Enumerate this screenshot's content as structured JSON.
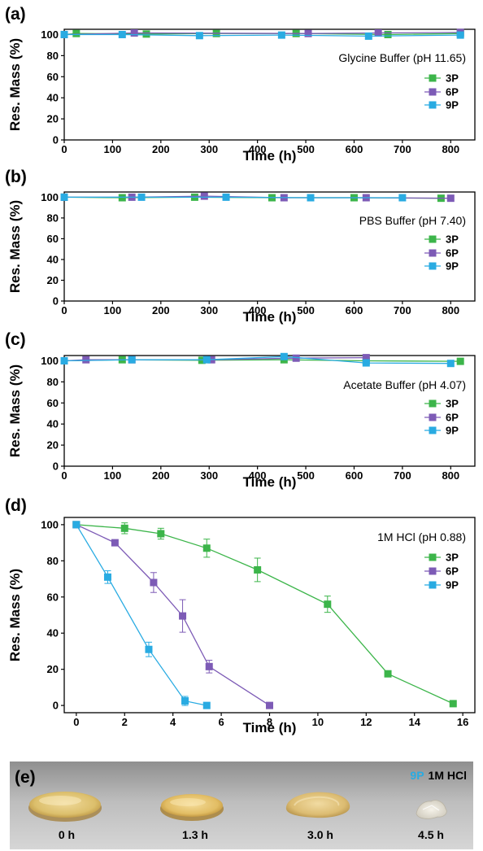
{
  "colors": {
    "3P": "#3cb54a",
    "6P": "#7d5bb6",
    "9P": "#29abe2"
  },
  "chart_data": [
    {
      "type": "line",
      "panel": "(a)",
      "condition": "Glycine Buffer (pH 11.65)",
      "xlabel": "Time (h)",
      "ylabel": "Res. Mass (%)",
      "xlim": [
        0,
        850
      ],
      "ylim": [
        0,
        105
      ],
      "xticks": [
        0,
        100,
        200,
        300,
        400,
        500,
        600,
        700,
        800
      ],
      "yticks": [
        0,
        20,
        40,
        60,
        80,
        100
      ],
      "legend_position": "right",
      "series": [
        {
          "name": "3P",
          "x": [
            0,
            25,
            170,
            315,
            480,
            670,
            820
          ],
          "y": [
            100,
            101,
            100.5,
            101,
            101,
            100,
            101
          ]
        },
        {
          "name": "6P",
          "x": [
            0,
            145,
            505,
            650,
            820
          ],
          "y": [
            100,
            101.5,
            101,
            101.5,
            102
          ]
        },
        {
          "name": "9P",
          "x": [
            0,
            120,
            280,
            450,
            630,
            820
          ],
          "y": [
            100,
            100,
            99,
            99.5,
            98.5,
            99.5
          ]
        }
      ]
    },
    {
      "type": "line",
      "panel": "(b)",
      "condition": "PBS Buffer (pH 7.40)",
      "xlabel": "Time (h)",
      "ylabel": "Res. Mass (%)",
      "xlim": [
        0,
        850
      ],
      "ylim": [
        0,
        105
      ],
      "xticks": [
        0,
        100,
        200,
        300,
        400,
        500,
        600,
        700,
        800
      ],
      "yticks": [
        0,
        20,
        40,
        60,
        80,
        100
      ],
      "legend_position": "right",
      "series": [
        {
          "name": "3P",
          "x": [
            0,
            120,
            270,
            430,
            600,
            780
          ],
          "y": [
            100,
            99.5,
            100,
            99.5,
            99.5,
            99
          ]
        },
        {
          "name": "6P",
          "x": [
            0,
            140,
            290,
            455,
            625,
            800
          ],
          "y": [
            100,
            100,
            101,
            99.5,
            99.5,
            99
          ]
        },
        {
          "name": "9P",
          "x": [
            0,
            160,
            335,
            510,
            700
          ],
          "y": [
            100,
            100,
            100,
            99.5,
            99.5
          ]
        }
      ]
    },
    {
      "type": "line",
      "panel": "(c)",
      "condition": "Acetate Buffer (pH 4.07)",
      "xlabel": "Time (h)",
      "ylabel": "Res. Mass (%)",
      "xlim": [
        0,
        850
      ],
      "ylim": [
        0,
        105
      ],
      "xticks": [
        0,
        100,
        200,
        300,
        400,
        500,
        600,
        700,
        800
      ],
      "yticks": [
        0,
        20,
        40,
        60,
        80,
        100
      ],
      "legend_position": "right",
      "series": [
        {
          "name": "3P",
          "x": [
            0,
            120,
            285,
            455,
            625,
            820
          ],
          "y": [
            100,
            101,
            100.5,
            101,
            100,
            99.5
          ]
        },
        {
          "name": "6P",
          "x": [
            0,
            45,
            140,
            305,
            480,
            625
          ],
          "y": [
            100,
            101,
            101,
            101,
            102.5,
            103
          ]
        },
        {
          "name": "9P",
          "x": [
            0,
            140,
            295,
            455,
            625,
            800
          ],
          "y": [
            100,
            101,
            101,
            104,
            98,
            97.5
          ]
        }
      ]
    },
    {
      "type": "line",
      "panel": "(d)",
      "condition": "1M HCl (pH 0.88)",
      "xlabel": "Time (h)",
      "ylabel": "Res. Mass (%)",
      "xlim": [
        -0.5,
        16.5
      ],
      "ylim": [
        -4,
        104
      ],
      "xticks": [
        0,
        2,
        4,
        6,
        8,
        10,
        12,
        14,
        16
      ],
      "yticks": [
        0,
        20,
        40,
        60,
        80,
        100
      ],
      "legend_position": "right",
      "series": [
        {
          "name": "3P",
          "x": [
            0,
            2,
            3.5,
            5.4,
            7.5,
            10.4,
            12.9,
            15.6
          ],
          "y": [
            100,
            98,
            95,
            87,
            75,
            56,
            17.5,
            1
          ],
          "err": [
            0,
            3,
            3,
            5,
            6.5,
            4.5,
            0,
            0
          ]
        },
        {
          "name": "6P",
          "x": [
            0,
            1.6,
            3.2,
            4.4,
            5.5,
            8
          ],
          "y": [
            100,
            90,
            68,
            49.5,
            21.5,
            0
          ],
          "err": [
            0,
            0,
            5.5,
            9,
            3.5,
            0
          ]
        },
        {
          "name": "9P",
          "x": [
            0,
            1.3,
            3.0,
            4.5,
            5.4
          ],
          "y": [
            100,
            71,
            31,
            2.5,
            0
          ],
          "err": [
            0,
            3.5,
            4,
            2.5,
            0
          ]
        }
      ]
    }
  ],
  "photo": {
    "panel": "(e)",
    "title_highlight": "9P",
    "title_rest": "1M HCl",
    "samples": [
      {
        "time": "0 h",
        "state": "intact"
      },
      {
        "time": "1.3 h",
        "state": "slightly degraded"
      },
      {
        "time": "3.0 h",
        "state": "degraded"
      },
      {
        "time": "4.5 h",
        "state": "fragment"
      }
    ]
  }
}
